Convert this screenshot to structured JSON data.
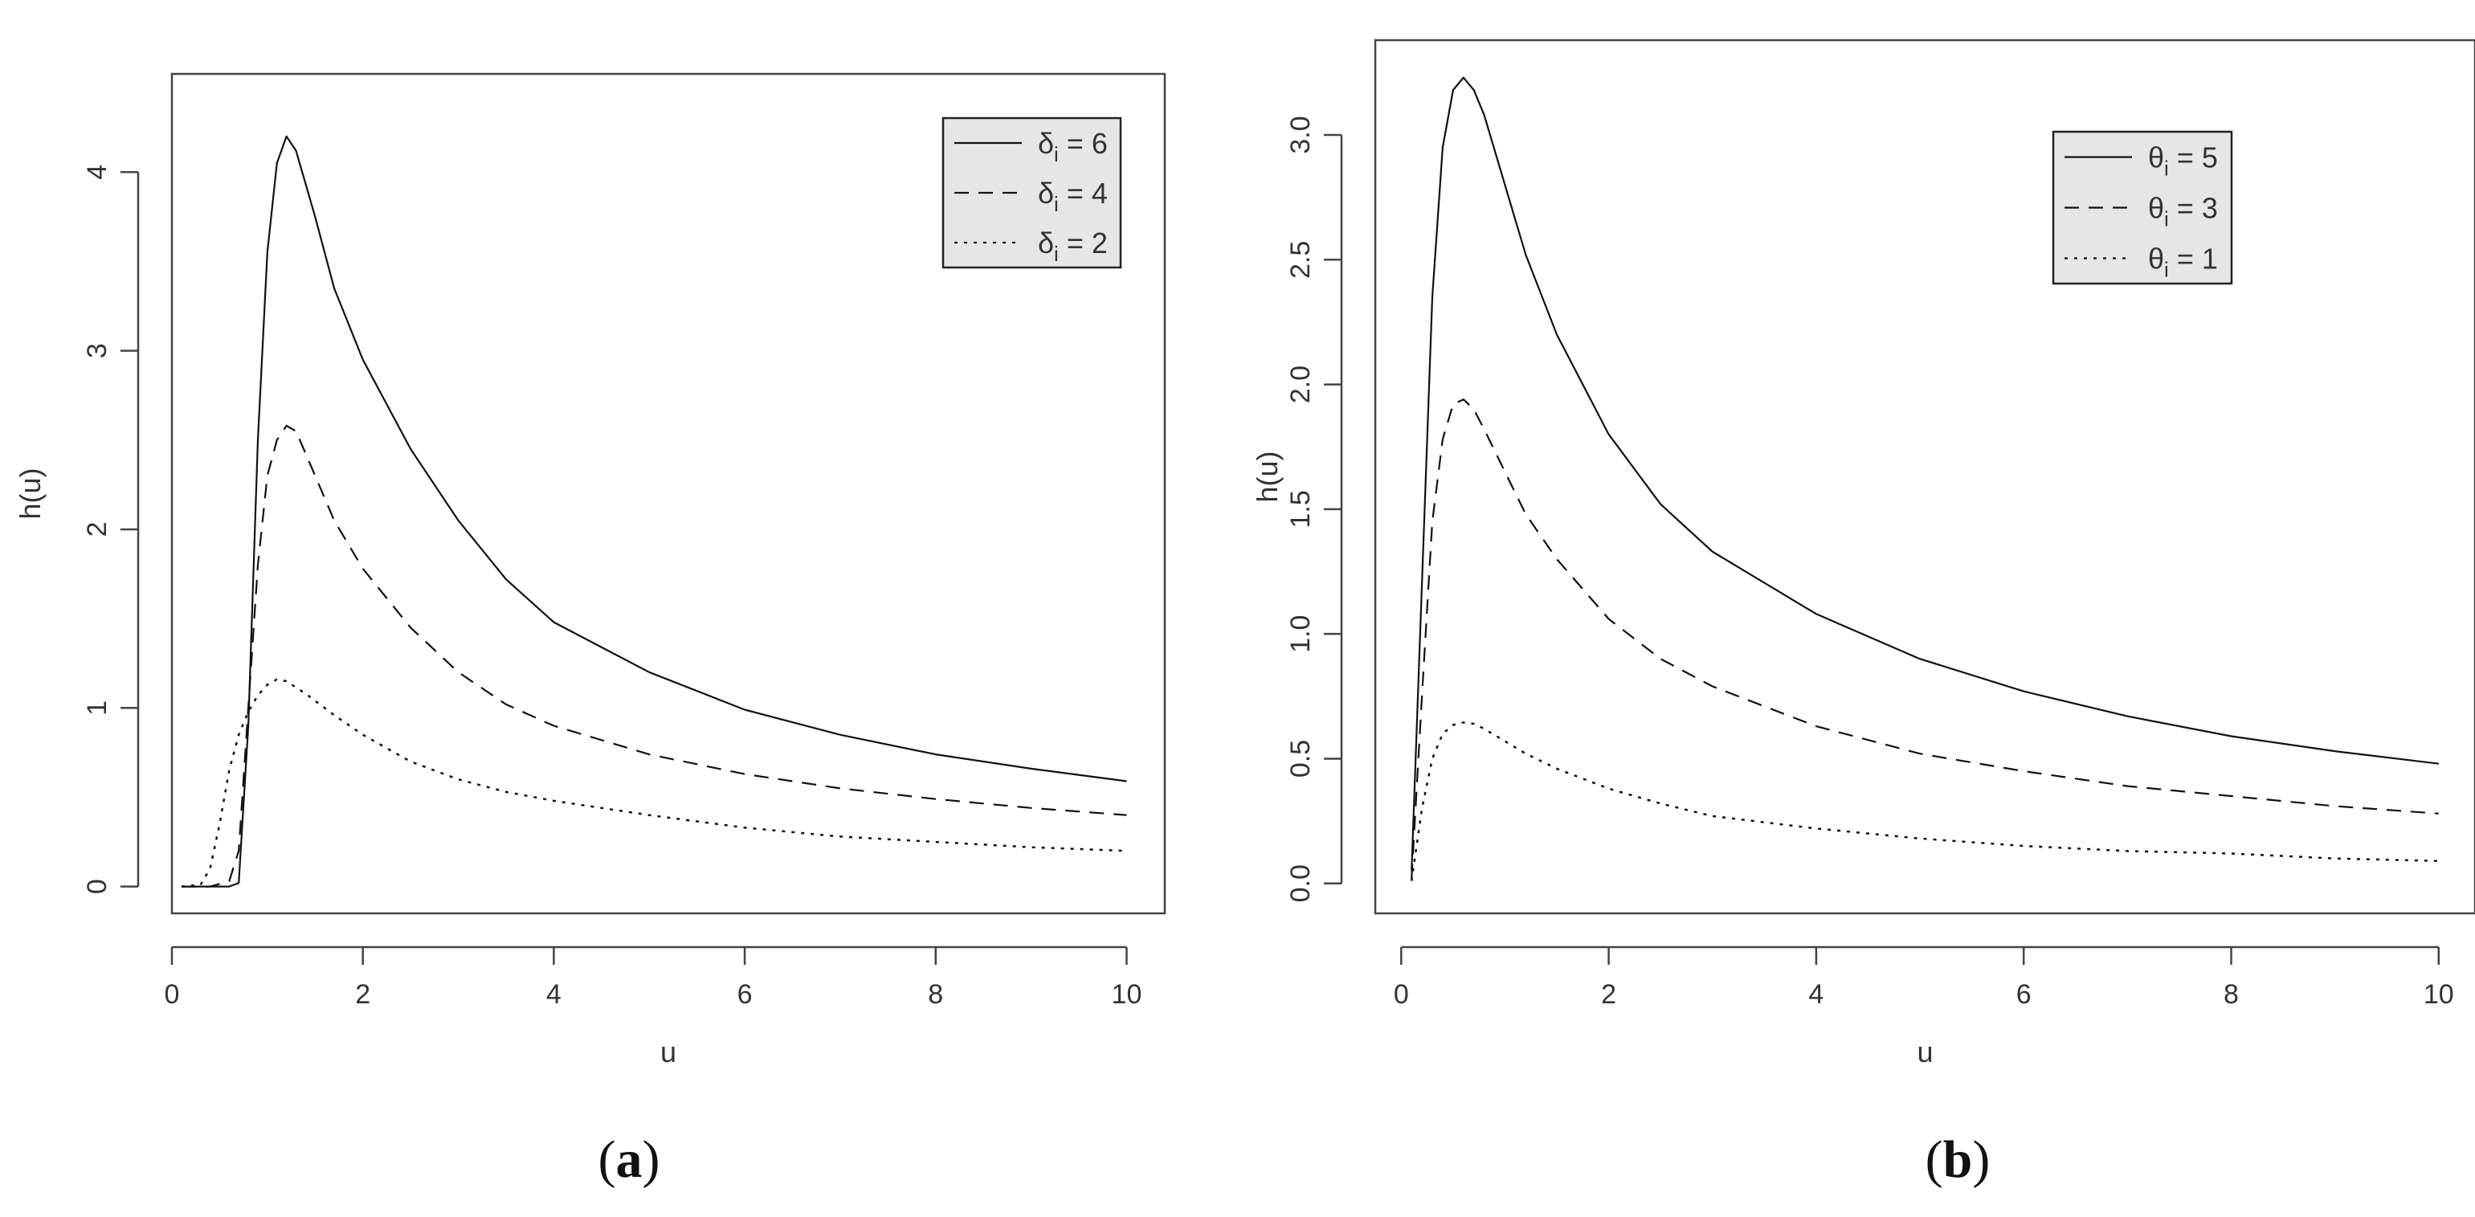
{
  "chart_data": [
    {
      "type": "line",
      "panel_label": "(a)",
      "panel_letter": "a",
      "xlabel": "u",
      "ylabel": "h(u)",
      "xlim": [
        0,
        10.4
      ],
      "ylim": [
        -0.15,
        4.55
      ],
      "xticks": [
        0,
        2,
        4,
        6,
        8,
        10
      ],
      "yticks": [
        0,
        1,
        2,
        3,
        4
      ],
      "ytick_labels": [
        "0",
        "1",
        "2",
        "3",
        "4"
      ],
      "legend": {
        "placement": "top-right",
        "background": "#e6e6e6",
        "symbol": "δ",
        "subscript": "i",
        "entries": [
          {
            "value": "6",
            "linestyle": "solid"
          },
          {
            "value": "4",
            "linestyle": "dashed"
          },
          {
            "value": "2",
            "linestyle": "dotted"
          }
        ]
      },
      "series": [
        {
          "linestyle": "solid",
          "x": [
            0.1,
            0.3,
            0.6,
            0.7,
            0.8,
            0.9,
            1.0,
            1.1,
            1.2,
            1.3,
            1.5,
            1.7,
            2.0,
            2.5,
            3.0,
            3.5,
            4.0,
            5.0,
            6.0,
            7.0,
            8.0,
            9.0,
            10.0
          ],
          "y": [
            0,
            0,
            0,
            0.02,
            0.9,
            2.5,
            3.55,
            4.05,
            4.2,
            4.12,
            3.75,
            3.35,
            2.95,
            2.45,
            2.05,
            1.72,
            1.48,
            1.2,
            0.99,
            0.85,
            0.74,
            0.66,
            0.59
          ]
        },
        {
          "linestyle": "dashed",
          "x": [
            0.1,
            0.4,
            0.6,
            0.7,
            0.8,
            0.9,
            1.0,
            1.1,
            1.2,
            1.3,
            1.5,
            1.7,
            2.0,
            2.5,
            3.0,
            3.5,
            4.0,
            5.0,
            6.0,
            7.0,
            8.0,
            9.0,
            10.0
          ],
          "y": [
            0,
            0,
            0.03,
            0.2,
            1.0,
            1.8,
            2.3,
            2.5,
            2.58,
            2.55,
            2.3,
            2.05,
            1.78,
            1.45,
            1.2,
            1.02,
            0.9,
            0.74,
            0.63,
            0.55,
            0.49,
            0.44,
            0.4
          ]
        },
        {
          "linestyle": "dotted",
          "x": [
            0.1,
            0.3,
            0.4,
            0.5,
            0.6,
            0.7,
            0.8,
            0.9,
            1.0,
            1.1,
            1.2,
            1.4,
            1.7,
            2.0,
            2.5,
            3.0,
            3.5,
            4.0,
            5.0,
            6.0,
            7.0,
            8.0,
            9.0,
            10.0
          ],
          "y": [
            0,
            0.01,
            0.1,
            0.35,
            0.65,
            0.85,
            0.98,
            1.07,
            1.13,
            1.16,
            1.15,
            1.08,
            0.96,
            0.85,
            0.7,
            0.6,
            0.53,
            0.48,
            0.4,
            0.33,
            0.28,
            0.25,
            0.22,
            0.2
          ]
        }
      ]
    },
    {
      "type": "line",
      "panel_label": "(b)",
      "panel_letter": "b",
      "xlabel": "u",
      "ylabel": "h(u)",
      "xlim": [
        -0.25,
        10.35
      ],
      "ylim": [
        -0.12,
        3.38
      ],
      "xticks": [
        0,
        2,
        4,
        6,
        8,
        10
      ],
      "yticks": [
        0.0,
        0.5,
        1.0,
        1.5,
        2.0,
        2.5,
        3.0
      ],
      "ytick_labels": [
        "0.0",
        "0.5",
        "1.0",
        "1.5",
        "2.0",
        "2.5",
        "3.0"
      ],
      "legend": {
        "placement": "top-right",
        "background": "#e6e6e6",
        "symbol": "θ",
        "subscript": "i",
        "entries": [
          {
            "value": "5",
            "linestyle": "solid"
          },
          {
            "value": "3",
            "linestyle": "dashed"
          },
          {
            "value": "1",
            "linestyle": "dotted"
          }
        ]
      },
      "series": [
        {
          "linestyle": "solid",
          "x": [
            0.1,
            0.2,
            0.3,
            0.4,
            0.5,
            0.6,
            0.7,
            0.8,
            1.0,
            1.2,
            1.5,
            2.0,
            2.5,
            3.0,
            4.0,
            5.0,
            6.0,
            7.0,
            8.0,
            9.0,
            10.0
          ],
          "y": [
            0.05,
            1.2,
            2.35,
            2.95,
            3.18,
            3.23,
            3.18,
            3.08,
            2.8,
            2.52,
            2.2,
            1.8,
            1.52,
            1.33,
            1.08,
            0.9,
            0.77,
            0.67,
            0.59,
            0.53,
            0.48
          ]
        },
        {
          "linestyle": "dashed",
          "x": [
            0.1,
            0.2,
            0.3,
            0.4,
            0.5,
            0.6,
            0.7,
            0.8,
            1.0,
            1.2,
            1.5,
            2.0,
            2.5,
            3.0,
            4.0,
            5.0,
            6.0,
            7.0,
            8.0,
            9.0,
            10.0
          ],
          "y": [
            0.02,
            0.75,
            1.45,
            1.78,
            1.92,
            1.94,
            1.9,
            1.82,
            1.65,
            1.48,
            1.3,
            1.06,
            0.9,
            0.79,
            0.63,
            0.52,
            0.45,
            0.39,
            0.35,
            0.31,
            0.28
          ]
        },
        {
          "linestyle": "dotted",
          "x": [
            0.1,
            0.2,
            0.3,
            0.4,
            0.5,
            0.6,
            0.7,
            0.8,
            1.0,
            1.2,
            1.5,
            2.0,
            2.5,
            3.0,
            4.0,
            5.0,
            6.0,
            7.0,
            8.0,
            9.0,
            10.0
          ],
          "y": [
            0.01,
            0.3,
            0.5,
            0.6,
            0.635,
            0.645,
            0.64,
            0.62,
            0.57,
            0.52,
            0.46,
            0.38,
            0.32,
            0.27,
            0.22,
            0.18,
            0.15,
            0.13,
            0.12,
            0.1,
            0.09
          ]
        }
      ]
    }
  ]
}
